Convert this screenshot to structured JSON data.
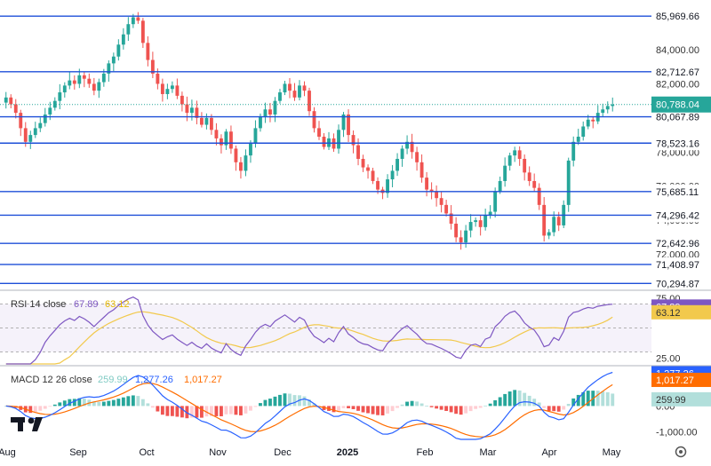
{
  "chart_data": [
    {
      "type": "candlestick",
      "title": "",
      "x_ticks": [
        "Aug",
        "Sep",
        "Oct",
        "Nov",
        "Dec",
        "2025",
        "Feb",
        "Mar",
        "Apr",
        "May"
      ],
      "y_ticks": [
        "84,000.00",
        "82,000.00",
        "78,000.00",
        "76,000.00",
        "74,000.00",
        "72,000.00"
      ],
      "ylim": [
        70000,
        86500
      ],
      "last_price": {
        "label": "80,788.04",
        "value": 80788.04
      },
      "horizontal_levels": [
        {
          "label": "85,969.66",
          "value": 85969.66
        },
        {
          "label": "82,712.67",
          "value": 82712.67
        },
        {
          "label": "80,067.89",
          "value": 80067.89
        },
        {
          "label": "78,523.16",
          "value": 78523.16
        },
        {
          "label": "75,685.11",
          "value": 75685.11
        },
        {
          "label": "74,296.42",
          "value": 74296.42
        },
        {
          "label": "72,642.96",
          "value": 72642.96
        },
        {
          "label": "71,408.97",
          "value": 71408.97
        },
        {
          "label": "70,294.87",
          "value": 70294.87
        }
      ],
      "colors": {
        "up": "#26a69a",
        "down": "#ef5350",
        "level": "#1e4fd8",
        "last": "#26a69a"
      },
      "closes": [
        81200,
        80800,
        80300,
        79400,
        78600,
        79000,
        79400,
        79700,
        80200,
        80600,
        81000,
        81500,
        81900,
        82200,
        82000,
        82500,
        82300,
        82000,
        81600,
        82100,
        82600,
        83200,
        83600,
        84300,
        84900,
        85500,
        85900,
        85700,
        84400,
        83400,
        82600,
        82000,
        81400,
        81700,
        81900,
        81300,
        80800,
        80300,
        80600,
        80000,
        79600,
        80000,
        79300,
        78800,
        78400,
        79200,
        78200,
        77400,
        76900,
        77800,
        78500,
        79400,
        80100,
        80500,
        80200,
        81000,
        81500,
        82000,
        81600,
        81200,
        81900,
        81600,
        80400,
        79400,
        78900,
        78300,
        78800,
        78200,
        79300,
        80200,
        79000,
        78400,
        77600,
        77100,
        76900,
        76300,
        75800,
        75600,
        76400,
        76900,
        77600,
        78200,
        78600,
        78000,
        77400,
        76500,
        75800,
        75700,
        75300,
        74900,
        74400,
        73800,
        73000,
        72700,
        73400,
        73900,
        74000,
        73600,
        74300,
        74500,
        75700,
        76300,
        77200,
        77800,
        78100,
        77600,
        76800,
        76300,
        75900,
        74900,
        73100,
        73300,
        74200,
        73700,
        74900,
        77500,
        78600,
        78900,
        79500,
        79900,
        79800,
        80300,
        80500,
        80700,
        80788
      ]
    },
    {
      "type": "line",
      "title": "RSI 14 close",
      "values_label": [
        "67.89",
        "63.12"
      ],
      "y_ticks": [
        "75.00",
        "25.00"
      ],
      "ylim": [
        20,
        80
      ],
      "band": [
        30,
        70
      ],
      "series": [
        {
          "name": "RSI",
          "color": "#7e57c2",
          "last": 67.89
        },
        {
          "name": "MA",
          "color": "#f2c94c",
          "last": 63.12
        }
      ]
    },
    {
      "type": "bar",
      "title": "MACD 12 26 close",
      "values_label": [
        "259.99",
        "1,277.26",
        "1,017.27"
      ],
      "y_ticks": [
        "0.00",
        "-1,000.00"
      ],
      "ylim": [
        -1300,
        1500
      ],
      "series": [
        {
          "name": "Histogram",
          "color": "#26a69a",
          "last": 259.99
        },
        {
          "name": "MACD",
          "color": "#2962ff",
          "last": 1277.26
        },
        {
          "name": "Signal",
          "color": "#ff6d00",
          "last": 1017.27
        }
      ]
    }
  ],
  "watermark": {
    "name": "tradingview-logo"
  }
}
